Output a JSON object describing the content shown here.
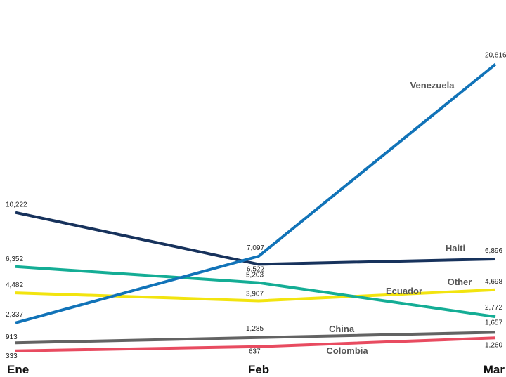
{
  "chart_data": {
    "type": "line",
    "x": [
      "Ene",
      "Feb",
      "Mar"
    ],
    "series": [
      {
        "name": "Venezuela",
        "values": [
          2337,
          7097,
          20816
        ],
        "color": "#1173b8",
        "value_labels": [
          "2,337",
          "7,097",
          "20,816"
        ]
      },
      {
        "name": "Haiti",
        "values": [
          10222,
          6522,
          6896
        ],
        "color": "#17325c",
        "value_labels": [
          "10,222",
          "6,522",
          "6,896"
        ]
      },
      {
        "name": "Other",
        "values": [
          4482,
          3907,
          4698
        ],
        "color": "#f2e40f",
        "value_labels": [
          "4,482",
          "3,907",
          "4,698"
        ]
      },
      {
        "name": "Ecuador",
        "values": [
          6352,
          5203,
          2772
        ],
        "color": "#14ad95",
        "value_labels": [
          "6,352",
          "5,203",
          "2,772"
        ]
      },
      {
        "name": "China",
        "values": [
          913,
          1285,
          1657
        ],
        "color": "#636363",
        "value_labels": [
          "913",
          "1,285",
          "1,657"
        ]
      },
      {
        "name": "Colombia",
        "values": [
          333,
          637,
          1260
        ],
        "color": "#e84b60",
        "value_labels": [
          "333",
          "637",
          "1,260"
        ]
      }
    ],
    "xlabel": "",
    "ylabel": "",
    "grid": false,
    "legend": "inline labels"
  }
}
